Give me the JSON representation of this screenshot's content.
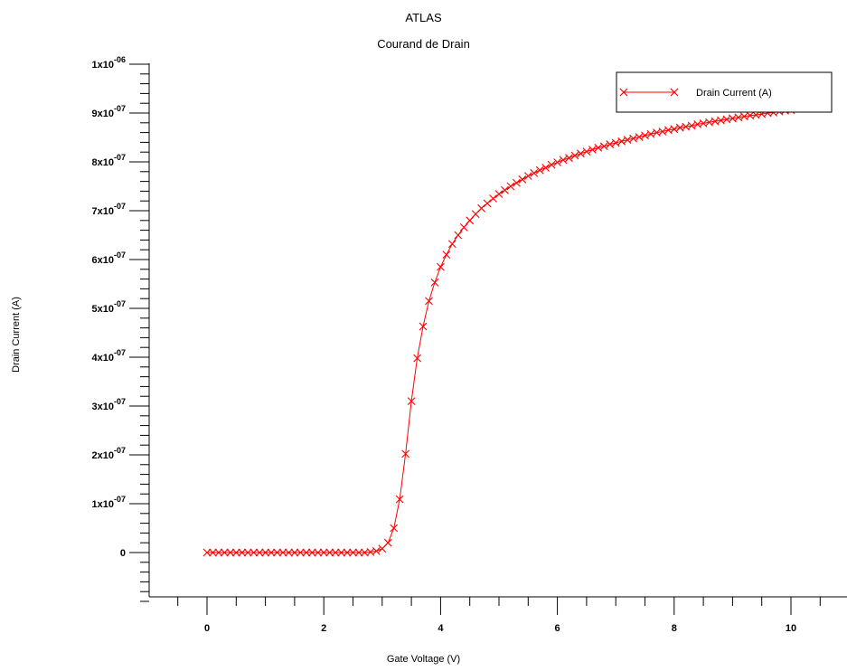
{
  "chart_data": {
    "type": "line",
    "title": "ATLAS",
    "subtitle": "Courand de Drain",
    "xlabel": "Gate Voltage (V)",
    "ylabel": "Drain Current (A)",
    "xlim": [
      -1,
      11
    ],
    "ylim": [
      -1e-07,
      1e-06
    ],
    "x_ticks": [
      0,
      2,
      4,
      6,
      8,
      10
    ],
    "x_tick_labels": [
      "0",
      "2",
      "4",
      "6",
      "8",
      "10"
    ],
    "y_ticks": [
      0,
      1e-07,
      2e-07,
      3e-07,
      4e-07,
      5e-07,
      6e-07,
      7e-07,
      8e-07,
      9e-07,
      1e-06
    ],
    "y_tick_labels": [
      {
        "mantissa": "0",
        "exponent": ""
      },
      {
        "mantissa": "1x10",
        "exponent": "-07"
      },
      {
        "mantissa": "2x10",
        "exponent": "-07"
      },
      {
        "mantissa": "3x10",
        "exponent": "-07"
      },
      {
        "mantissa": "4x10",
        "exponent": "-07"
      },
      {
        "mantissa": "5x10",
        "exponent": "-07"
      },
      {
        "mantissa": "6x10",
        "exponent": "-07"
      },
      {
        "mantissa": "7x10",
        "exponent": "-07"
      },
      {
        "mantissa": "8x10",
        "exponent": "-07"
      },
      {
        "mantissa": "9x10",
        "exponent": "-07"
      },
      {
        "mantissa": "1x10",
        "exponent": "-06"
      }
    ],
    "legend_position": "top-right",
    "grid": false,
    "series": [
      {
        "name": "Drain Current (A)",
        "color": "#ff0000",
        "marker": "x",
        "x": [
          0,
          0.1,
          0.2,
          0.3,
          0.4,
          0.5,
          0.6,
          0.7,
          0.8,
          0.9,
          1.0,
          1.1,
          1.2,
          1.3,
          1.4,
          1.5,
          1.6,
          1.7,
          1.8,
          1.9,
          2.0,
          2.1,
          2.2,
          2.3,
          2.4,
          2.5,
          2.6,
          2.7,
          2.8,
          2.9,
          3.0,
          3.1,
          3.2,
          3.3,
          3.4,
          3.5,
          3.6,
          3.7,
          3.8,
          3.9,
          4.0,
          4.1,
          4.2,
          4.3,
          4.4,
          4.5,
          4.6,
          4.7,
          4.8,
          4.9,
          5.0,
          5.1,
          5.2,
          5.3,
          5.4,
          5.5,
          5.6,
          5.7,
          5.8,
          5.9,
          6.0,
          6.1,
          6.2,
          6.3,
          6.4,
          6.5,
          6.6,
          6.7,
          6.8,
          6.9,
          7.0,
          7.1,
          7.2,
          7.3,
          7.4,
          7.5,
          7.6,
          7.7,
          7.8,
          7.9,
          8.0,
          8.1,
          8.2,
          8.3,
          8.4,
          8.5,
          8.6,
          8.7,
          8.8,
          8.9,
          9.0,
          9.1,
          9.2,
          9.3,
          9.4,
          9.5,
          9.6,
          9.7,
          9.8,
          9.9,
          10.0
        ],
        "y": [
          0,
          0,
          0,
          0,
          0,
          0,
          0,
          0,
          0,
          0,
          0,
          0,
          0,
          0,
          0,
          0,
          0,
          0,
          0,
          0,
          0,
          0,
          0,
          0,
          0,
          0,
          0,
          0,
          1e-09,
          3e-09,
          8e-09,
          2e-08,
          5e-08,
          1.09e-07,
          2.02e-07,
          3.1e-07,
          3.98e-07,
          4.63e-07,
          5.15e-07,
          5.53e-07,
          5.85e-07,
          6.1e-07,
          6.32e-07,
          6.5e-07,
          6.66e-07,
          6.8e-07,
          6.93e-07,
          7.05e-07,
          7.15e-07,
          7.25e-07,
          7.34e-07,
          7.42e-07,
          7.5e-07,
          7.57e-07,
          7.64e-07,
          7.71e-07,
          7.77e-07,
          7.83e-07,
          7.88e-07,
          7.94e-07,
          7.99e-07,
          8.04e-07,
          8.08e-07,
          8.13e-07,
          8.17e-07,
          8.21e-07,
          8.25e-07,
          8.29e-07,
          8.32e-07,
          8.36e-07,
          8.39e-07,
          8.42e-07,
          8.45e-07,
          8.48e-07,
          8.51e-07,
          8.54e-07,
          8.57e-07,
          8.6e-07,
          8.62e-07,
          8.65e-07,
          8.67e-07,
          8.7e-07,
          8.72e-07,
          8.74e-07,
          8.77e-07,
          8.79e-07,
          8.81e-07,
          8.83e-07,
          8.85e-07,
          8.87e-07,
          8.89e-07,
          8.91e-07,
          8.93e-07,
          8.95e-07,
          8.96e-07,
          8.98e-07,
          9e-07,
          9.01e-07,
          9.03e-07,
          9.05e-07,
          9.06e-07
        ]
      }
    ]
  }
}
